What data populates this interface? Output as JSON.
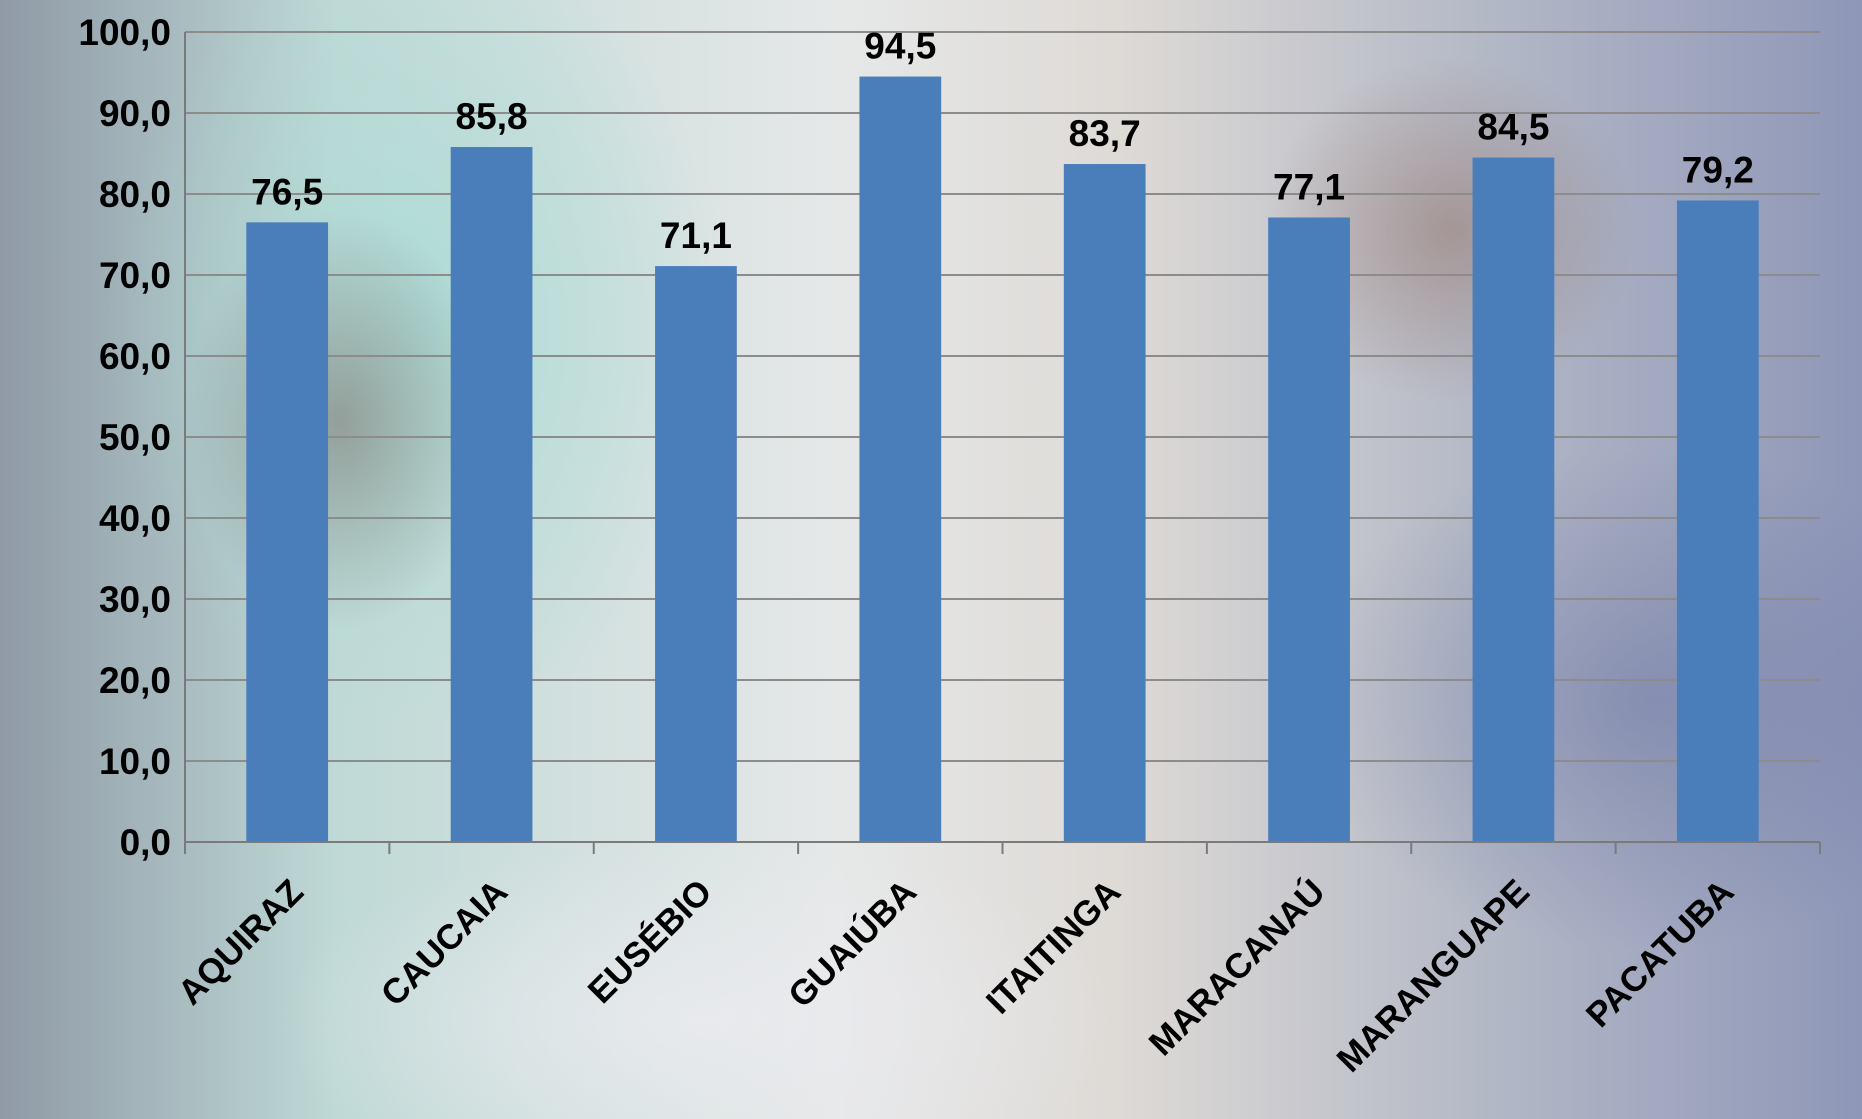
{
  "chart_data": {
    "type": "bar",
    "title": "",
    "xlabel": "",
    "ylabel": "",
    "categories": [
      "AQUIRAZ",
      "CAUCAIA",
      "EUSÉBIO",
      "GUAIÚBA",
      "ITAITINGA",
      "MARACANAÚ",
      "MARANGUAPE",
      "PACATUBA"
    ],
    "values": [
      76.5,
      85.8,
      71.1,
      94.5,
      83.7,
      77.1,
      84.5,
      79.2
    ],
    "value_labels": [
      "76,5",
      "85,8",
      "71,1",
      "94,5",
      "83,7",
      "77,1",
      "84,5",
      "79,2"
    ],
    "ylim": [
      0,
      100
    ],
    "yticks": [
      0,
      10,
      20,
      30,
      40,
      50,
      60,
      70,
      80,
      90,
      100
    ],
    "ytick_labels": [
      "0,0",
      "10,0",
      "20,0",
      "30,0",
      "40,0",
      "50,0",
      "60,0",
      "70,0",
      "80,0",
      "90,0",
      "100,0"
    ],
    "grid": true,
    "legend": "none",
    "bar_color": "#4a7ebb",
    "background": "photo"
  }
}
